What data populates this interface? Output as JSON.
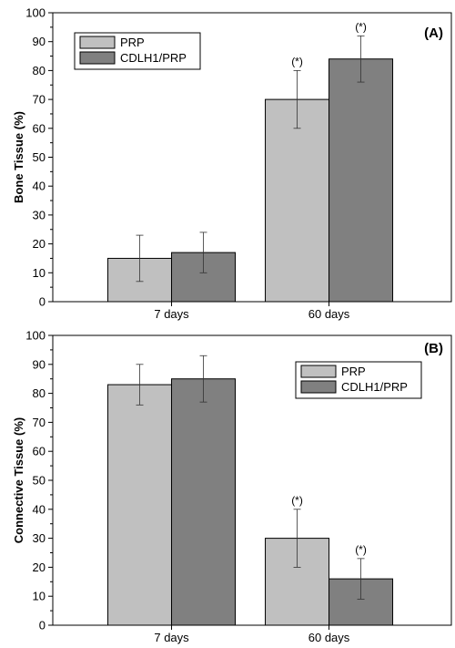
{
  "chart_data": [
    {
      "type": "bar",
      "panel_label": "(A)",
      "ylabel": "Bone Tissue (%)",
      "xlabel": "",
      "categories": [
        "7 days",
        "60 days"
      ],
      "ylim": [
        0,
        100
      ],
      "yticks": [
        "0",
        "10",
        "20",
        "30",
        "40",
        "50",
        "60",
        "70",
        "80",
        "90",
        "100"
      ],
      "legend_position": "top-left",
      "series": [
        {
          "name": "PRP",
          "color": "#c0c0c0",
          "values": [
            15,
            70
          ],
          "errors": [
            8,
            10
          ],
          "annotations": [
            "",
            "(*)"
          ]
        },
        {
          "name": "CDLH1/PRP",
          "color": "#808080",
          "values": [
            17,
            84
          ],
          "errors": [
            7,
            8
          ],
          "annotations": [
            "",
            "(*)"
          ]
        }
      ]
    },
    {
      "type": "bar",
      "panel_label": "(B)",
      "ylabel": "Connective Tissue (%)",
      "xlabel": "",
      "categories": [
        "7 days",
        "60 days"
      ],
      "ylim": [
        0,
        100
      ],
      "yticks": [
        "0",
        "10",
        "20",
        "30",
        "40",
        "50",
        "60",
        "70",
        "80",
        "90",
        "100"
      ],
      "legend_position": "top-right",
      "series": [
        {
          "name": "PRP",
          "color": "#c0c0c0",
          "values": [
            83,
            30
          ],
          "errors": [
            7,
            10
          ],
          "annotations": [
            "",
            "(*)"
          ]
        },
        {
          "name": "CDLH1/PRP",
          "color": "#808080",
          "values": [
            85,
            16
          ],
          "errors": [
            8,
            7
          ],
          "annotations": [
            "",
            "(*)"
          ]
        }
      ]
    }
  ]
}
